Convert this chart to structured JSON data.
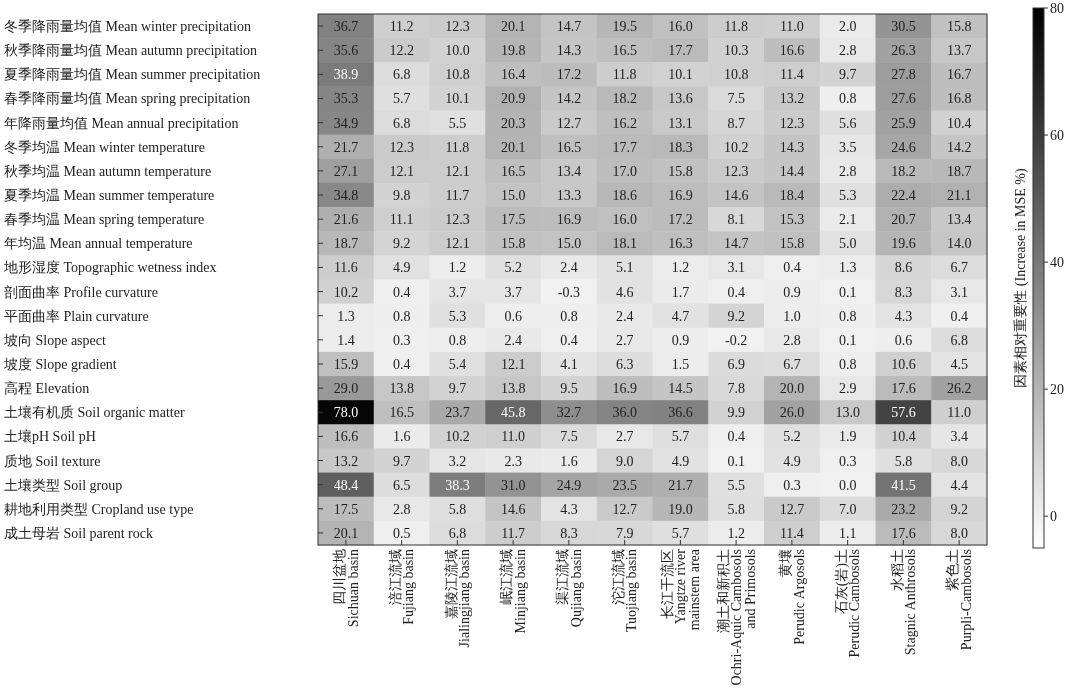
{
  "chart_data": {
    "type": "heatmap",
    "clabel": "因素相对重要性 (Increase in MSE %)",
    "categories": [
      "四川盆地\nSichuan basin",
      "涪江流域\nFujiang basin",
      "嘉陵江流域\nJialingjiang basin",
      "岷江流域\nMinjiang basin",
      "渠江流域\nQujiang basin",
      "沱江流域\nTuojiang basin",
      "长江干流区\nYangtze river\nmainstem area",
      "潮土和新积土\nOchri-Aquic Cambosols\nand Primosols",
      "黄壤\nPerudic Argosols",
      "石灰(岩)土\nPerudic Cambosols",
      "水稻土\nStagnic Anthrosols",
      "紫色土\nPurpli-Cambosols"
    ],
    "y_categories": [
      "冬季降雨量均值 Mean winter precipitation",
      "秋季降雨量均值 Mean autumn precipitation",
      "夏季降雨量均值 Mean summer precipitation",
      "春季降雨量均值 Mean spring precipitation",
      "年降雨量均值 Mean annual precipitation",
      "冬季均温 Mean winter temperature",
      "秋季均温 Mean autumn temperature",
      "夏季均温 Mean summer temperature",
      "春季均温 Mean spring temperature",
      "年均温 Mean annual temperature",
      "地形湿度 Topographic wetness index",
      "剖面曲率 Profile curvature",
      "平面曲率 Plain curvature",
      "坡向 Slope aspect",
      "坡度 Slope gradient",
      "高程 Elevation",
      "土壤有机质 Soil organic matter",
      "土壤pH Soil pH",
      "质地 Soil texture",
      "土壤类型 Soil group",
      "耕地利用类型 Cropland use type",
      "成土母岩 Soil parent rock"
    ],
    "cells": [
      [
        36.7,
        11.2,
        12.3,
        20.1,
        14.7,
        19.5,
        16.0,
        11.8,
        11.0,
        2.0,
        30.5,
        15.8
      ],
      [
        35.6,
        12.2,
        10.0,
        19.8,
        14.3,
        16.5,
        17.7,
        10.3,
        16.6,
        2.8,
        26.3,
        13.7
      ],
      [
        38.9,
        6.8,
        10.8,
        16.4,
        17.2,
        11.8,
        10.1,
        10.8,
        11.4,
        9.7,
        27.8,
        16.7
      ],
      [
        35.3,
        5.7,
        10.1,
        20.9,
        14.2,
        18.2,
        13.6,
        7.5,
        13.2,
        0.8,
        27.6,
        16.8
      ],
      [
        34.9,
        6.8,
        5.5,
        20.3,
        12.7,
        16.2,
        13.1,
        8.7,
        12.3,
        5.6,
        25.9,
        10.4
      ],
      [
        21.7,
        12.3,
        11.8,
        20.1,
        16.5,
        17.7,
        18.3,
        10.2,
        14.3,
        3.5,
        24.6,
        14.2
      ],
      [
        27.1,
        12.1,
        12.1,
        16.5,
        13.4,
        17.0,
        15.8,
        12.3,
        14.4,
        2.8,
        18.2,
        18.7
      ],
      [
        34.8,
        9.8,
        11.7,
        15.0,
        13.3,
        18.6,
        16.9,
        14.6,
        18.4,
        5.3,
        22.4,
        21.1
      ],
      [
        21.6,
        11.1,
        12.3,
        17.5,
        16.9,
        16.0,
        17.2,
        8.1,
        15.3,
        2.1,
        20.7,
        13.4
      ],
      [
        18.7,
        9.2,
        12.1,
        15.8,
        15.0,
        18.1,
        16.3,
        14.7,
        15.8,
        5.0,
        19.6,
        14.0
      ],
      [
        11.6,
        4.9,
        1.2,
        5.2,
        2.4,
        5.1,
        1.2,
        3.1,
        0.4,
        1.3,
        8.6,
        6.7
      ],
      [
        10.2,
        0.4,
        3.7,
        3.7,
        -0.3,
        4.6,
        1.7,
        0.4,
        0.9,
        0.1,
        8.3,
        3.1
      ],
      [
        1.3,
        0.8,
        5.3,
        0.6,
        0.8,
        2.4,
        4.7,
        9.2,
        1.0,
        0.8,
        4.3,
        0.4
      ],
      [
        1.4,
        0.3,
        0.8,
        2.4,
        0.4,
        2.7,
        0.9,
        -0.2,
        2.8,
        0.1,
        0.6,
        6.8
      ],
      [
        15.9,
        0.4,
        5.4,
        12.1,
        4.1,
        6.3,
        1.5,
        6.9,
        6.7,
        0.8,
        10.6,
        4.5
      ],
      [
        29.0,
        13.8,
        9.7,
        13.8,
        9.5,
        16.9,
        14.5,
        7.8,
        20.0,
        2.9,
        17.6,
        26.2
      ],
      [
        78.0,
        16.5,
        23.7,
        45.8,
        32.7,
        36.0,
        36.6,
        9.9,
        26.0,
        13.0,
        57.6,
        11.0
      ],
      [
        16.6,
        1.6,
        10.2,
        11.0,
        7.5,
        2.7,
        5.7,
        0.4,
        5.2,
        1.9,
        10.4,
        3.4
      ],
      [
        13.2,
        9.7,
        3.2,
        2.3,
        1.6,
        9.0,
        4.9,
        0.1,
        4.9,
        0.3,
        5.8,
        8.0
      ],
      [
        48.4,
        6.5,
        38.3,
        31.0,
        24.9,
        23.5,
        21.7,
        5.5,
        0.3,
        0.0,
        41.5,
        4.4
      ],
      [
        17.5,
        2.8,
        5.8,
        14.6,
        4.3,
        12.7,
        19.0,
        5.8,
        12.7,
        7.0,
        23.2,
        9.2
      ],
      [
        20.1,
        0.5,
        6.8,
        11.7,
        8.3,
        7.9,
        5.7,
        1.2,
        11.4,
        1.1,
        17.6,
        8.0
      ]
    ],
    "cell_labels": [
      [
        "36.7",
        "11.2",
        "12.3",
        "20.1",
        "14.7",
        "19.5",
        "16.0",
        "11.8",
        "11.0",
        "2.0",
        "30.5",
        "15.8"
      ],
      [
        "35.6",
        "12.2",
        "10.0",
        "19.8",
        "14.3",
        "16.5",
        "17.7",
        "10.3",
        "16.6",
        "2.8",
        "26.3",
        "13.7"
      ],
      [
        "38.9",
        "6.8",
        "10.8",
        "16.4",
        "17.2",
        "11.8",
        "10.1",
        "10.8",
        "11.4",
        "9.7",
        "27.8",
        "16.7"
      ],
      [
        "35.3",
        "5.7",
        "10.1",
        "20.9",
        "14.2",
        "18.2",
        "13.6",
        "7.5",
        "13.2",
        "0.8",
        "27.6",
        "16.8"
      ],
      [
        "34.9",
        "6.8",
        "5.5",
        "20.3",
        "12.7",
        "16.2",
        "13.1",
        "8.7",
        "12.3",
        "5.6",
        "25.9",
        "10.4"
      ],
      [
        "21.7",
        "12.3",
        "11.8",
        "20.1",
        "16.5",
        "17.7",
        "18.3",
        "10.2",
        "14.3",
        "3.5",
        "24.6",
        "14.2"
      ],
      [
        "27.1",
        "12.1",
        "12.1",
        "16.5",
        "13.4",
        "17.0",
        "15.8",
        "12.3",
        "14.4",
        "2.8",
        "18.2",
        "18.7"
      ],
      [
        "34.8",
        "9.8",
        "11.7",
        "15.0",
        "13.3",
        "18.6",
        "16.9",
        "14.6",
        "18.4",
        "5.3",
        "22.4",
        "21.1"
      ],
      [
        "21.6",
        "11.1",
        "12.3",
        "17.5",
        "16.9",
        "16.0",
        "17.2",
        "8.1",
        "15.3",
        "2.1",
        "20.7",
        "13.4"
      ],
      [
        "18.7",
        "9.2",
        "12.1",
        "15.8",
        "15.0",
        "18.1",
        "16.3",
        "14.7",
        "15.8",
        "5.0",
        "19.6",
        "14.0"
      ],
      [
        "11.6",
        "4.9",
        "1.2",
        "5.2",
        "2.4",
        "5.1",
        "1.2",
        "3.1",
        "0.4",
        "1.3",
        "8.6",
        "6.7"
      ],
      [
        "10.2",
        "0.4",
        "3.7",
        "3.7",
        "-0.3",
        "4.6",
        "1.7",
        "0.4",
        "0.9",
        "0.1",
        "8.3",
        "3.1"
      ],
      [
        "1.3",
        "0.8",
        "5.3",
        "0.6",
        "0.8",
        "2.4",
        "4.7",
        "9.2",
        "1.0",
        "0.8",
        "4.3",
        "0.4"
      ],
      [
        "1.4",
        "0.3",
        "0.8",
        "2.4",
        "0.4",
        "2.7",
        "0.9",
        "-0.2",
        "2.8",
        "0.1",
        "0.6",
        "6.8"
      ],
      [
        "15.9",
        "0.4",
        "5.4",
        "12.1",
        "4.1",
        "6.3",
        "1.5",
        "6.9",
        "6.7",
        "0.8",
        "10.6",
        "4.5"
      ],
      [
        "29.0",
        "13.8",
        "9.7",
        "13.8",
        "9.5",
        "16.9",
        "14.5",
        "7.8",
        "20.0",
        "2.9",
        "17.6",
        "26.2"
      ],
      [
        "78.0",
        "16.5",
        "23.7",
        "45.8",
        "32.7",
        "36.0",
        "36.6",
        "9.9",
        "26.0",
        "13.0",
        "57.6",
        "11.0"
      ],
      [
        "16.6",
        "1.6",
        "10.2",
        "11.0",
        "7.5",
        "2.7",
        "5.7",
        "0.4",
        "5.2",
        "1.9",
        "10.4",
        "3.4"
      ],
      [
        "13.2",
        "9.7",
        "3.2",
        "2.3",
        "1.6",
        "9.0",
        "4.9",
        "0.1",
        "4.9",
        "0.3",
        "5.8",
        "8.0"
      ],
      [
        "48.4",
        "6.5",
        "38.3",
        "31.0",
        "24.9",
        "23.5",
        "21.7",
        "5.5",
        "0.3",
        "0.0",
        "41.5",
        "4.4"
      ],
      [
        "17.5",
        "2.8",
        "5.8",
        "14.6",
        "4.3",
        "12.7",
        "19.0",
        "5.8",
        "12.7",
        "7.0",
        "23.2",
        "9.2"
      ],
      [
        "20.1",
        "0.5",
        "6.8",
        "11.7",
        "8.3",
        "7.9",
        "5.7",
        "1.2",
        "11.4",
        "1.1",
        "17.6",
        "8.0"
      ]
    ],
    "clim": [
      -5,
      80
    ],
    "cticks": [
      0,
      20,
      40,
      60,
      80
    ]
  }
}
